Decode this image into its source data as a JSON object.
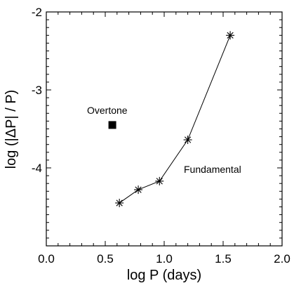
{
  "chart_data": {
    "type": "line",
    "xlabel": "log P (days)",
    "ylabel": "log (|ΔP| / P)",
    "xlim": [
      0.0,
      2.0
    ],
    "ylim": [
      -5.0,
      -2.0
    ],
    "x_ticks": [
      0.0,
      0.5,
      1.0,
      1.5,
      2.0
    ],
    "x_tick_labels": [
      "0.0",
      "0.5",
      "1.0",
      "1.5",
      "2.0"
    ],
    "y_ticks": [
      -4,
      -3,
      -2
    ],
    "y_tick_labels": [
      "-4",
      "-3",
      "-2"
    ],
    "grid": false,
    "series": [
      {
        "name": "Fundamental",
        "marker": "asterisk",
        "line": true,
        "x": [
          0.62,
          0.78,
          0.96,
          1.2,
          1.56
        ],
        "y": [
          -4.45,
          -4.28,
          -4.17,
          -3.64,
          -2.3
        ]
      },
      {
        "name": "Overtone",
        "marker": "square",
        "line": false,
        "x": [
          0.56
        ],
        "y": [
          -3.45
        ]
      }
    ],
    "annotations": [
      "Overtone",
      "Fundamental"
    ]
  }
}
